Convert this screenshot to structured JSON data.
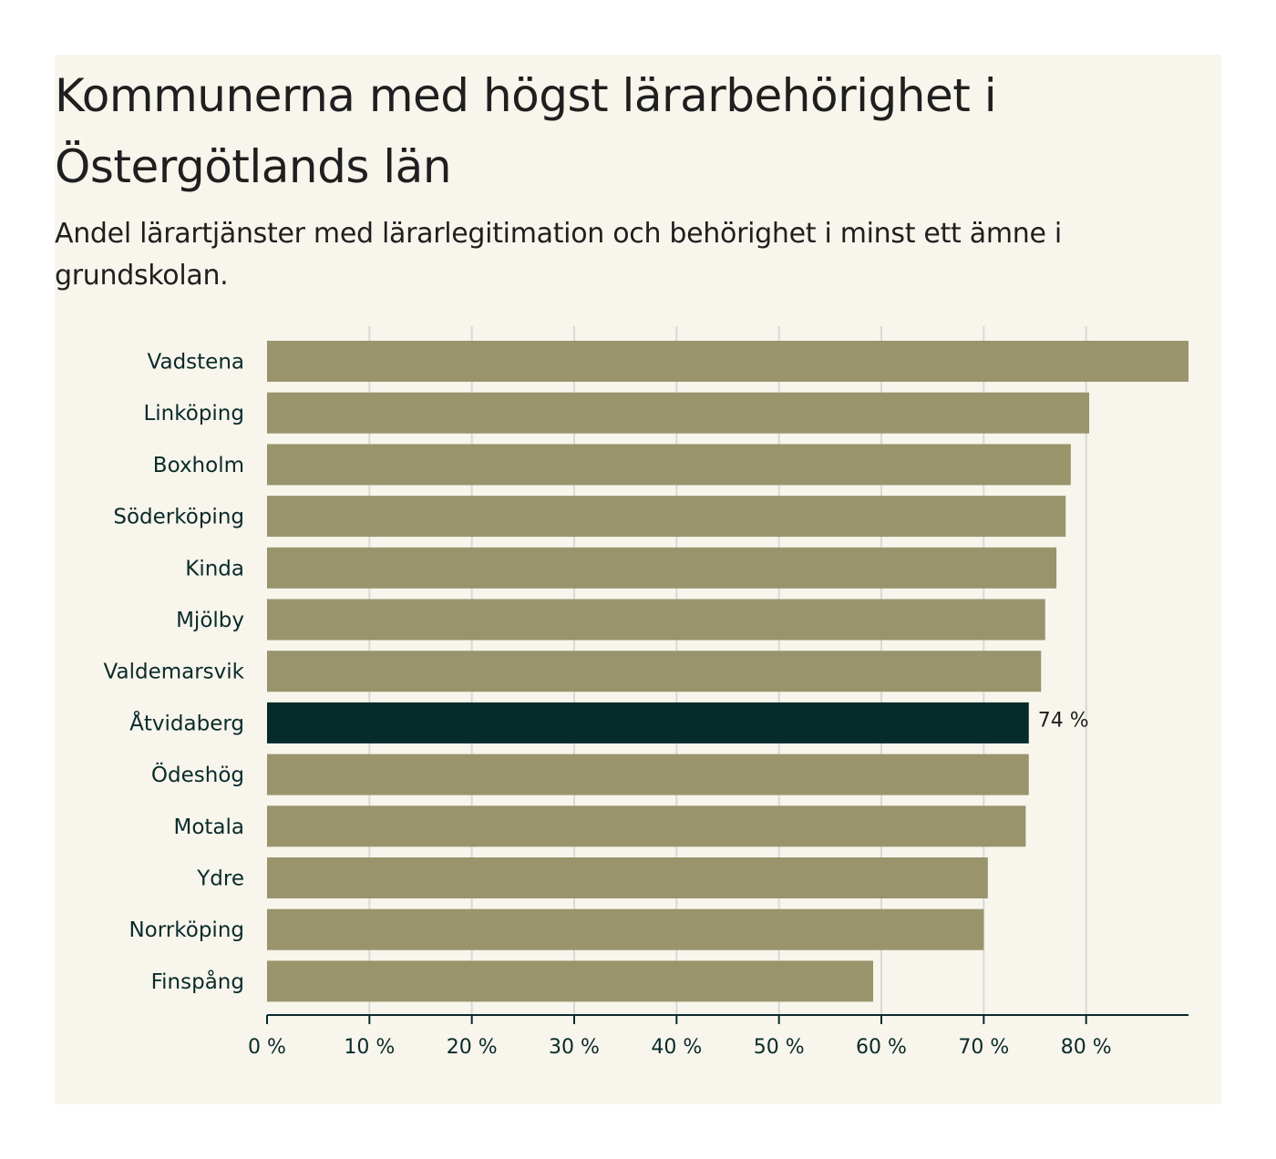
{
  "title": "Kommunerna med högst lärarbehörighet i Östergötlands län",
  "subtitle": "Andel lärartjänster med lärarlegitimation och behörighet i minst ett ämne i grundskolan.",
  "colors": {
    "bar": "#99946b",
    "highlight": "#062b2b",
    "grid": "#d9d9d9",
    "axis": "#0a2a2a",
    "background": "#f7f5ec"
  },
  "chart_data": {
    "type": "bar",
    "orientation": "horizontal",
    "categories": [
      "Vadstena",
      "Linköping",
      "Boxholm",
      "Söderköping",
      "Kinda",
      "Mjölby",
      "Valdemarsvik",
      "Åtvidaberg",
      "Ödeshög",
      "Motala",
      "Ydre",
      "Norrköping",
      "Finspång"
    ],
    "values": [
      90,
      80.3,
      78.5,
      78,
      77.1,
      76,
      75.6,
      74.4,
      74.4,
      74.1,
      70.4,
      70,
      59.2
    ],
    "highlight_index": 7,
    "data_labels": [
      {
        "index": 7,
        "text": "74 %"
      }
    ],
    "xlim": [
      0,
      90
    ],
    "xticks": [
      0,
      10,
      20,
      30,
      40,
      50,
      60,
      70,
      80
    ],
    "tick_labels": [
      "0 %",
      "10 %",
      "20 %",
      "30 %",
      "40 %",
      "50 %",
      "60 %",
      "70 %",
      "80 %"
    ],
    "grid": true,
    "xlabel": "",
    "ylabel": ""
  }
}
